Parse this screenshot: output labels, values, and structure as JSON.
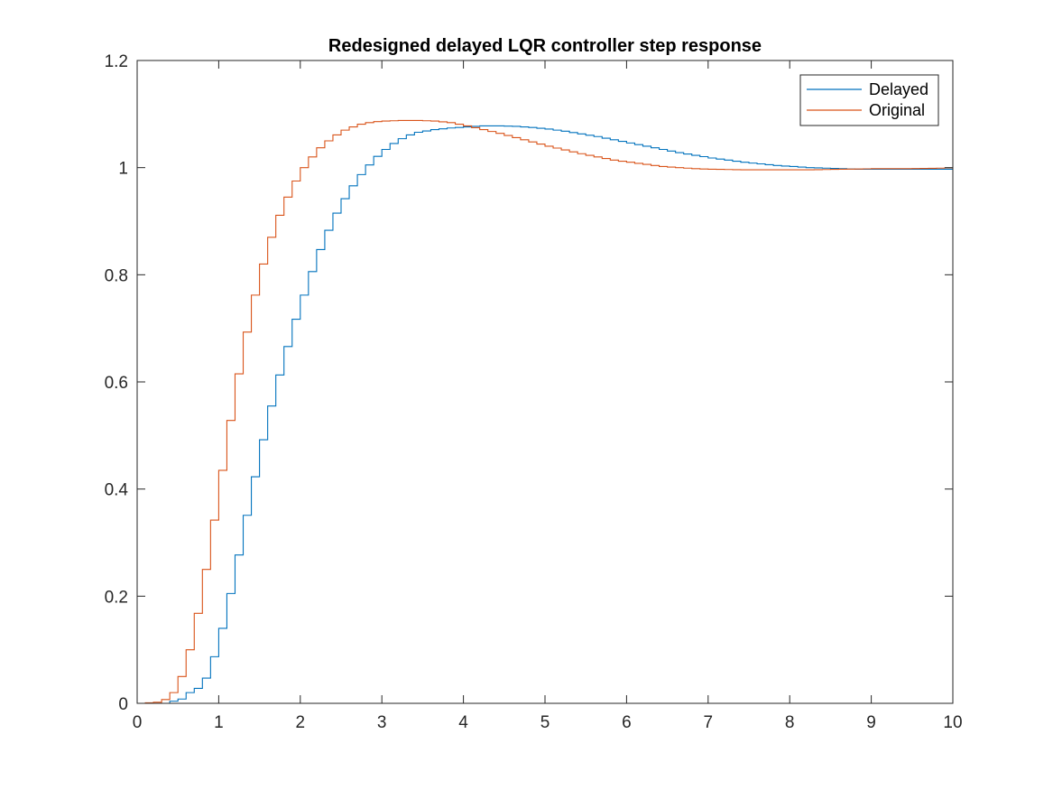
{
  "chart_data": {
    "type": "line",
    "step": true,
    "title": "Redesigned delayed LQR controller step response",
    "xlabel": "",
    "ylabel": "",
    "xlim": [
      0,
      10
    ],
    "ylim": [
      0,
      1.2
    ],
    "xticks": [
      0,
      1,
      2,
      3,
      4,
      5,
      6,
      7,
      8,
      9,
      10
    ],
    "xtick_labels": [
      "0",
      "1",
      "2",
      "3",
      "4",
      "5",
      "6",
      "7",
      "8",
      "9",
      "10"
    ],
    "yticks": [
      0,
      0.2,
      0.4,
      0.6,
      0.8,
      1,
      1.2
    ],
    "ytick_labels": [
      "0",
      "0.2",
      "0.4",
      "0.6",
      "0.8",
      "1",
      "1.2"
    ],
    "grid": false,
    "legend_position": "top-right",
    "sample_time": 0.1,
    "series": [
      {
        "name": "Delayed",
        "color": "#0072BD",
        "points": [
          [
            0,
            0
          ],
          [
            0.3,
            0.0
          ],
          [
            0.5,
            0.008
          ],
          [
            0.6,
            0.02
          ],
          [
            0.7,
            0.028
          ],
          [
            0.8,
            0.047
          ],
          [
            0.9,
            0.087
          ],
          [
            1.0,
            0.14
          ],
          [
            1.1,
            0.205
          ],
          [
            1.2,
            0.277
          ],
          [
            1.3,
            0.351
          ],
          [
            1.4,
            0.423
          ],
          [
            1.5,
            0.492
          ],
          [
            1.6,
            0.555
          ],
          [
            1.7,
            0.613
          ],
          [
            1.8,
            0.666
          ],
          [
            1.9,
            0.717
          ],
          [
            2.0,
            0.762
          ],
          [
            2.1,
            0.806
          ],
          [
            2.2,
            0.847
          ],
          [
            2.3,
            0.883
          ],
          [
            2.4,
            0.915
          ],
          [
            2.5,
            0.942
          ],
          [
            2.6,
            0.966
          ],
          [
            2.7,
            0.987
          ],
          [
            2.8,
            1.005
          ],
          [
            2.9,
            1.021
          ],
          [
            3.0,
            1.034
          ],
          [
            3.1,
            1.045
          ],
          [
            3.2,
            1.054
          ],
          [
            3.3,
            1.061
          ],
          [
            3.4,
            1.066
          ],
          [
            3.6,
            1.071
          ],
          [
            3.8,
            1.074
          ],
          [
            4.0,
            1.076
          ],
          [
            4.2,
            1.078
          ],
          [
            4.4,
            1.078
          ],
          [
            4.6,
            1.077
          ],
          [
            4.8,
            1.075
          ],
          [
            5.0,
            1.072
          ],
          [
            5.2,
            1.068
          ],
          [
            5.4,
            1.063
          ],
          [
            5.6,
            1.058
          ],
          [
            5.8,
            1.052
          ],
          [
            6.0,
            1.046
          ],
          [
            6.2,
            1.04
          ],
          [
            6.4,
            1.034
          ],
          [
            6.6,
            1.028
          ],
          [
            6.8,
            1.023
          ],
          [
            7.0,
            1.018
          ],
          [
            7.2,
            1.014
          ],
          [
            7.4,
            1.01
          ],
          [
            7.6,
            1.007
          ],
          [
            7.8,
            1.004
          ],
          [
            8.0,
            1.002
          ],
          [
            8.2,
            1.0
          ],
          [
            8.4,
            0.999
          ],
          [
            8.6,
            0.998
          ],
          [
            8.8,
            0.997
          ],
          [
            9.0,
            0.997
          ],
          [
            9.2,
            0.997
          ],
          [
            9.4,
            0.997
          ],
          [
            9.6,
            0.997
          ],
          [
            9.8,
            0.997
          ],
          [
            10.0,
            0.997
          ]
        ]
      },
      {
        "name": "Original",
        "color": "#D95319",
        "points": [
          [
            0,
            0
          ],
          [
            0.2,
            0.002
          ],
          [
            0.3,
            0.007
          ],
          [
            0.4,
            0.02
          ],
          [
            0.5,
            0.05
          ],
          [
            0.6,
            0.1
          ],
          [
            0.7,
            0.168
          ],
          [
            0.8,
            0.25
          ],
          [
            0.9,
            0.342
          ],
          [
            1.0,
            0.435
          ],
          [
            1.1,
            0.528
          ],
          [
            1.2,
            0.615
          ],
          [
            1.3,
            0.693
          ],
          [
            1.4,
            0.762
          ],
          [
            1.5,
            0.82
          ],
          [
            1.6,
            0.87
          ],
          [
            1.7,
            0.911
          ],
          [
            1.8,
            0.945
          ],
          [
            1.9,
            0.975
          ],
          [
            2.0,
            1.0
          ],
          [
            2.1,
            1.02
          ],
          [
            2.2,
            1.037
          ],
          [
            2.3,
            1.05
          ],
          [
            2.4,
            1.061
          ],
          [
            2.5,
            1.07
          ],
          [
            2.6,
            1.076
          ],
          [
            2.7,
            1.081
          ],
          [
            2.8,
            1.084
          ],
          [
            2.9,
            1.086
          ],
          [
            3.0,
            1.087
          ],
          [
            3.2,
            1.088
          ],
          [
            3.4,
            1.088
          ],
          [
            3.6,
            1.087
          ],
          [
            3.8,
            1.084
          ],
          [
            4.0,
            1.078
          ],
          [
            4.2,
            1.071
          ],
          [
            4.4,
            1.064
          ],
          [
            4.6,
            1.056
          ],
          [
            4.8,
            1.048
          ],
          [
            5.0,
            1.04
          ],
          [
            5.2,
            1.033
          ],
          [
            5.4,
            1.026
          ],
          [
            5.6,
            1.02
          ],
          [
            5.8,
            1.014
          ],
          [
            6.0,
            1.01
          ],
          [
            6.2,
            1.006
          ],
          [
            6.4,
            1.002
          ],
          [
            6.6,
            1.0
          ],
          [
            6.8,
            0.998
          ],
          [
            7.0,
            0.997
          ],
          [
            7.4,
            0.996
          ],
          [
            7.8,
            0.996
          ],
          [
            8.2,
            0.996
          ],
          [
            8.6,
            0.997
          ],
          [
            9.0,
            0.998
          ],
          [
            9.4,
            0.998
          ],
          [
            9.8,
            0.999
          ],
          [
            10.0,
            1.0
          ]
        ]
      }
    ]
  }
}
